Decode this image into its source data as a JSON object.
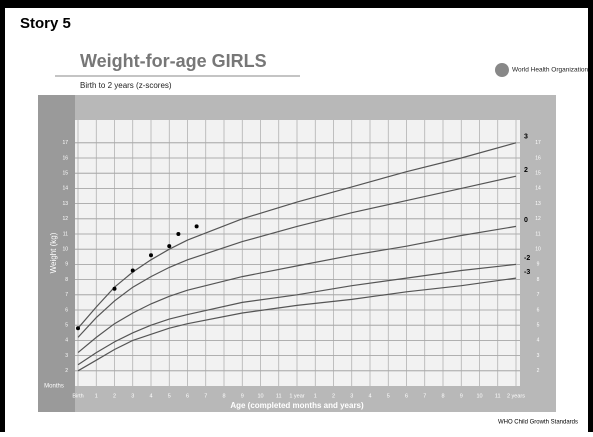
{
  "chart_data": {
    "type": "line",
    "heading": "Story 5",
    "title": "Weight-for-age GIRLS",
    "subtitle": "Birth to 2 years (z-scores)",
    "organization": "World Health Organization",
    "x_label": "Age (completed months and years)",
    "y_label": "Weight (kg)",
    "x_unit_label": "Months",
    "footer": "WHO Child Growth Standards",
    "x": [
      0,
      1,
      2,
      3,
      4,
      5,
      6,
      9,
      12,
      15,
      18,
      21,
      24
    ],
    "series": [
      {
        "name": "3",
        "color": "#555555",
        "values": [
          4.8,
          6.2,
          7.5,
          8.5,
          9.3,
          10.0,
          10.6,
          12.0,
          13.1,
          14.1,
          15.1,
          16.0,
          17.0
        ]
      },
      {
        "name": "2",
        "color": "#555555",
        "values": [
          4.2,
          5.5,
          6.6,
          7.5,
          8.2,
          8.8,
          9.3,
          10.5,
          11.5,
          12.4,
          13.2,
          14.0,
          14.8
        ]
      },
      {
        "name": "0",
        "color": "#555555",
        "values": [
          3.2,
          4.2,
          5.1,
          5.8,
          6.4,
          6.9,
          7.3,
          8.2,
          8.9,
          9.6,
          10.2,
          10.9,
          11.5
        ]
      },
      {
        "name": "-2",
        "color": "#555555",
        "values": [
          2.4,
          3.2,
          3.9,
          4.5,
          5.0,
          5.4,
          5.7,
          6.5,
          7.0,
          7.6,
          8.1,
          8.6,
          9.0
        ]
      },
      {
        "name": "-3",
        "color": "#555555",
        "values": [
          2.0,
          2.7,
          3.4,
          4.0,
          4.4,
          4.8,
          5.1,
          5.8,
          6.3,
          6.7,
          7.2,
          7.6,
          8.1
        ]
      }
    ],
    "points": {
      "color": "#000000",
      "x": [
        0,
        2,
        3,
        4,
        5,
        5.5,
        6.5
      ],
      "values": [
        4.8,
        7.4,
        8.6,
        9.6,
        10.2,
        11.0,
        11.5
      ]
    },
    "xlim": [
      0,
      24
    ],
    "ylim": [
      1,
      18.5
    ],
    "yticks": [
      2,
      3,
      4,
      5,
      6,
      7,
      8,
      9,
      10,
      11,
      12,
      13,
      14,
      15,
      16,
      17
    ],
    "xticks": [
      {
        "value": 0,
        "label": "Birth"
      },
      1,
      2,
      3,
      4,
      5,
      6,
      7,
      8,
      9,
      10,
      11,
      {
        "value": 12,
        "label": "1 year"
      },
      {
        "value": 13,
        "label": "1"
      },
      {
        "value": 14,
        "label": "2"
      },
      {
        "value": 15,
        "label": "3"
      },
      {
        "value": 16,
        "label": "4"
      },
      {
        "value": 17,
        "label": "5"
      },
      {
        "value": 18,
        "label": "6"
      },
      {
        "value": 19,
        "label": "7"
      },
      {
        "value": 20,
        "label": "8"
      },
      {
        "value": 21,
        "label": "9"
      },
      {
        "value": 22,
        "label": "10"
      },
      {
        "value": 23,
        "label": "11"
      },
      {
        "value": 24,
        "label": "2 years"
      }
    ],
    "grid": true
  }
}
